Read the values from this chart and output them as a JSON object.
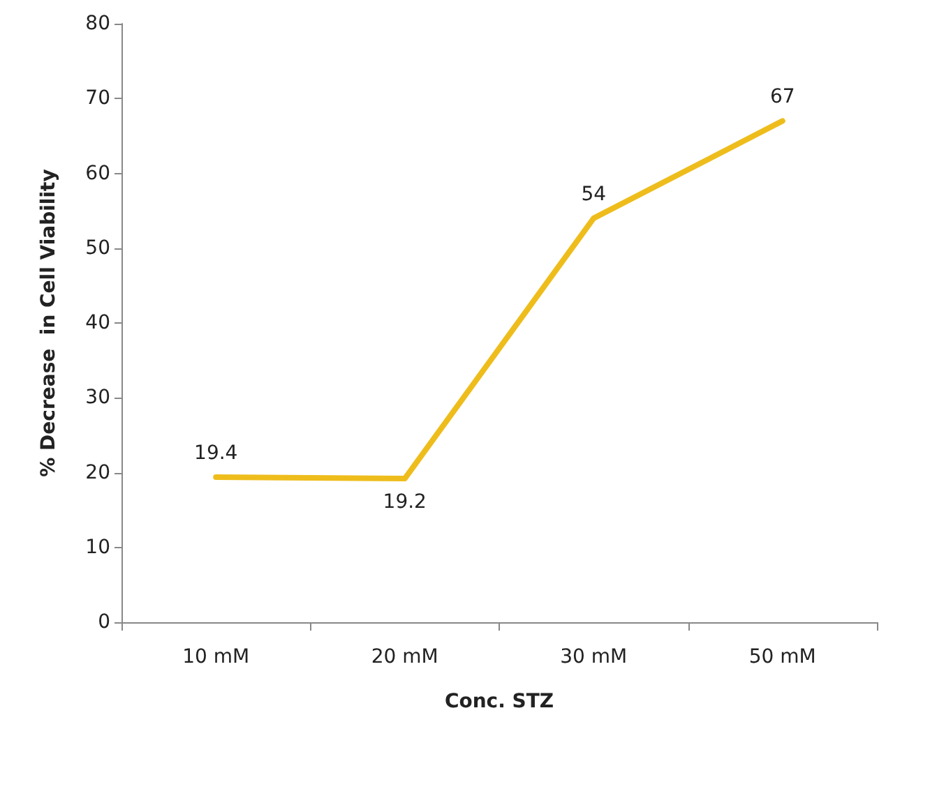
{
  "chart_data": {
    "type": "line",
    "xlabel": "Conc. STZ",
    "ylabel": "% Decrease  in Cell Viability",
    "categories": [
      "10 mM",
      "20 mM",
      "30 mM",
      "50 mM"
    ],
    "series": [
      {
        "color": "#eebd1c",
        "values": [
          19.4,
          19.2,
          54,
          67
        ]
      }
    ],
    "ylim": [
      0,
      80
    ],
    "yticks": [
      0,
      10,
      20,
      30,
      40,
      50,
      60,
      70,
      80
    ],
    "data_labels": true,
    "grid": false,
    "marker": "none",
    "line_style": "solid"
  }
}
